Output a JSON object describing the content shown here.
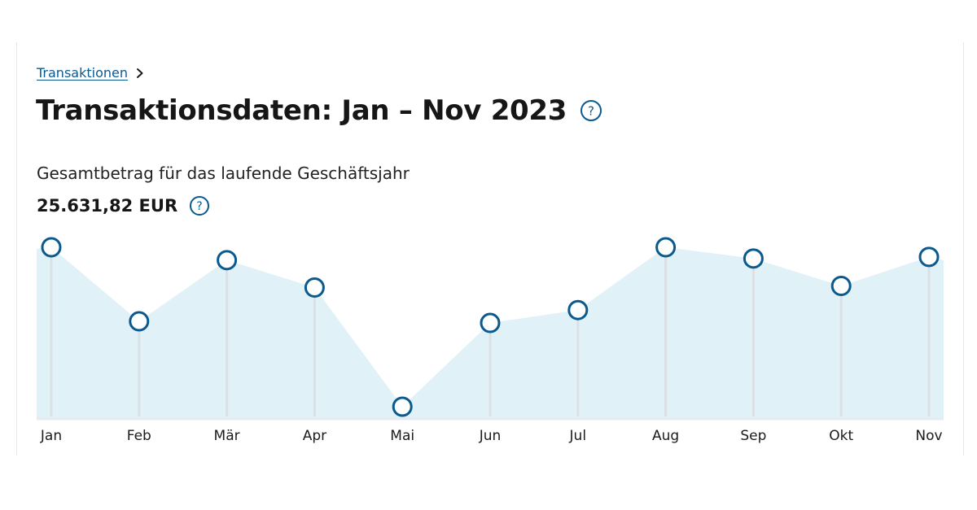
{
  "breadcrumb": {
    "link_label": "Transaktionen",
    "separator_icon": "chevron-right-icon"
  },
  "header": {
    "title": "Transaktionsdaten: Jan – Nov 2023",
    "help_icon": "question-circle-icon"
  },
  "summary": {
    "label": "Gesamtbetrag für das laufende Geschäftsjahr",
    "total": "25.631,82 EUR",
    "help_icon": "question-circle-icon"
  },
  "colors": {
    "accent": "#0b5a8f",
    "area_fill": "#e1f1f8",
    "stem": "#d9e1e5",
    "baseline": "#e4eaee"
  },
  "chart_data": {
    "type": "area",
    "categories": [
      "Jan",
      "Feb",
      "Mär",
      "Apr",
      "Mai",
      "Jun",
      "Jul",
      "Aug",
      "Sep",
      "Okt",
      "Nov"
    ],
    "series": [
      {
        "values": [
          0.99,
          0.53,
          0.91,
          0.74,
          0.0,
          0.52,
          0.6,
          0.99,
          0.92,
          0.75,
          0.93
        ]
      }
    ],
    "value_scale": "relative (no y-axis values shown)",
    "markers": "hollow circles with vertical stems",
    "grid": false,
    "legend": "none"
  }
}
